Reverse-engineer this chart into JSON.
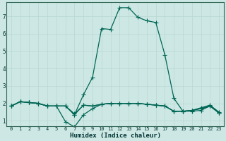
{
  "xlabel": "Humidex (Indice chaleur)",
  "bg_color": "#cde8e4",
  "grid_color": "#b8d8d2",
  "line_color": "#006655",
  "x_ticks": [
    0,
    1,
    2,
    3,
    4,
    5,
    6,
    7,
    8,
    9,
    10,
    11,
    12,
    13,
    14,
    15,
    16,
    17,
    18,
    19,
    20,
    21,
    22,
    23
  ],
  "y_ticks": [
    1,
    2,
    3,
    4,
    5,
    6,
    7
  ],
  "ylim": [
    0.7,
    7.8
  ],
  "xlim": [
    -0.5,
    23.5
  ],
  "line_main_x": [
    0,
    1,
    2,
    3,
    4,
    5,
    6,
    7,
    8,
    9,
    10,
    11,
    12,
    13,
    14,
    15,
    16,
    17,
    18,
    19,
    20,
    21,
    22,
    23
  ],
  "line_main_y": [
    1.85,
    2.1,
    2.05,
    2.0,
    1.85,
    1.85,
    1.85,
    1.35,
    2.5,
    3.5,
    6.3,
    6.25,
    7.5,
    7.5,
    6.95,
    6.75,
    6.65,
    4.8,
    2.3,
    1.55,
    1.55,
    1.6,
    1.85,
    1.45
  ],
  "line_low1_x": [
    0,
    1,
    2,
    3,
    4,
    5,
    6,
    7,
    8,
    9,
    10,
    11,
    12,
    13,
    14,
    15,
    16,
    17,
    18,
    19,
    20,
    21,
    22,
    23
  ],
  "line_low1_y": [
    1.85,
    2.1,
    2.05,
    2.0,
    1.85,
    1.85,
    0.95,
    0.65,
    1.35,
    1.7,
    1.95,
    2.0,
    2.0,
    2.0,
    2.0,
    1.95,
    1.9,
    1.85,
    1.55,
    1.55,
    1.6,
    1.7,
    1.85,
    1.45
  ],
  "line_low2_x": [
    0,
    1,
    2,
    3,
    4,
    5,
    6,
    7,
    8,
    9,
    10,
    11,
    12,
    13,
    14,
    15,
    16,
    17,
    18,
    19,
    20,
    21,
    22,
    23
  ],
  "line_low2_y": [
    1.85,
    2.1,
    2.05,
    2.0,
    1.85,
    1.85,
    1.85,
    1.35,
    1.9,
    1.85,
    1.95,
    2.0,
    2.0,
    2.0,
    2.0,
    1.95,
    1.9,
    1.85,
    1.55,
    1.55,
    1.6,
    1.7,
    1.85,
    1.45
  ],
  "line_low3_x": [
    0,
    1,
    2,
    3,
    4,
    5,
    6,
    7,
    8,
    9,
    10,
    11,
    12,
    13,
    14,
    15,
    16,
    17,
    18,
    19,
    20,
    21,
    22,
    23
  ],
  "line_low3_y": [
    1.85,
    2.1,
    2.05,
    2.0,
    1.85,
    1.85,
    1.85,
    1.4,
    1.9,
    1.85,
    1.95,
    2.0,
    2.0,
    2.0,
    2.0,
    1.95,
    1.9,
    1.85,
    1.55,
    1.55,
    1.6,
    1.75,
    1.9,
    1.5
  ]
}
